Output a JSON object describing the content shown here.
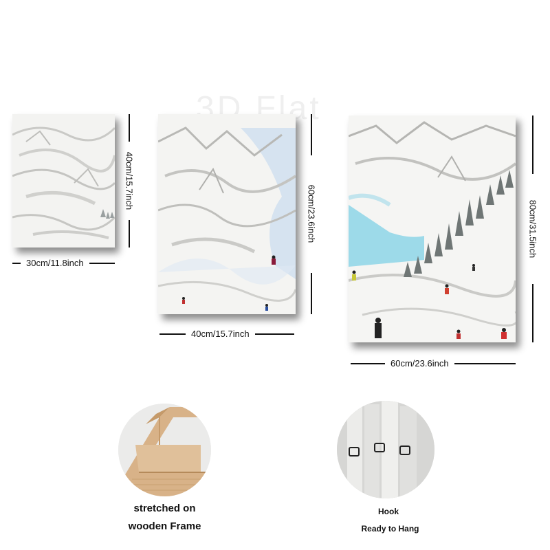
{
  "watermark": "3D Flat",
  "panels": [
    {
      "id": "small",
      "width_label": "30cm/11.8inch",
      "height_label": "40cm/15.7inch"
    },
    {
      "id": "medium",
      "width_label": "40cm/15.7inch",
      "height_label": "60cm/23.6inch"
    },
    {
      "id": "large",
      "width_label": "60cm/23.6inch",
      "height_label": "80cm/31.5inch"
    }
  ],
  "features": {
    "frame": {
      "caption_line1": "stretched on",
      "caption_line2": "wooden Frame"
    },
    "hook": {
      "caption_line1": "Hook",
      "caption_line2": "Ready to Hang"
    }
  },
  "colors": {
    "snow": "#f2f2f0",
    "sky_blue": "#bcd3ea",
    "turquoise": "#7fd0e6",
    "wood": "#d9b48a"
  }
}
